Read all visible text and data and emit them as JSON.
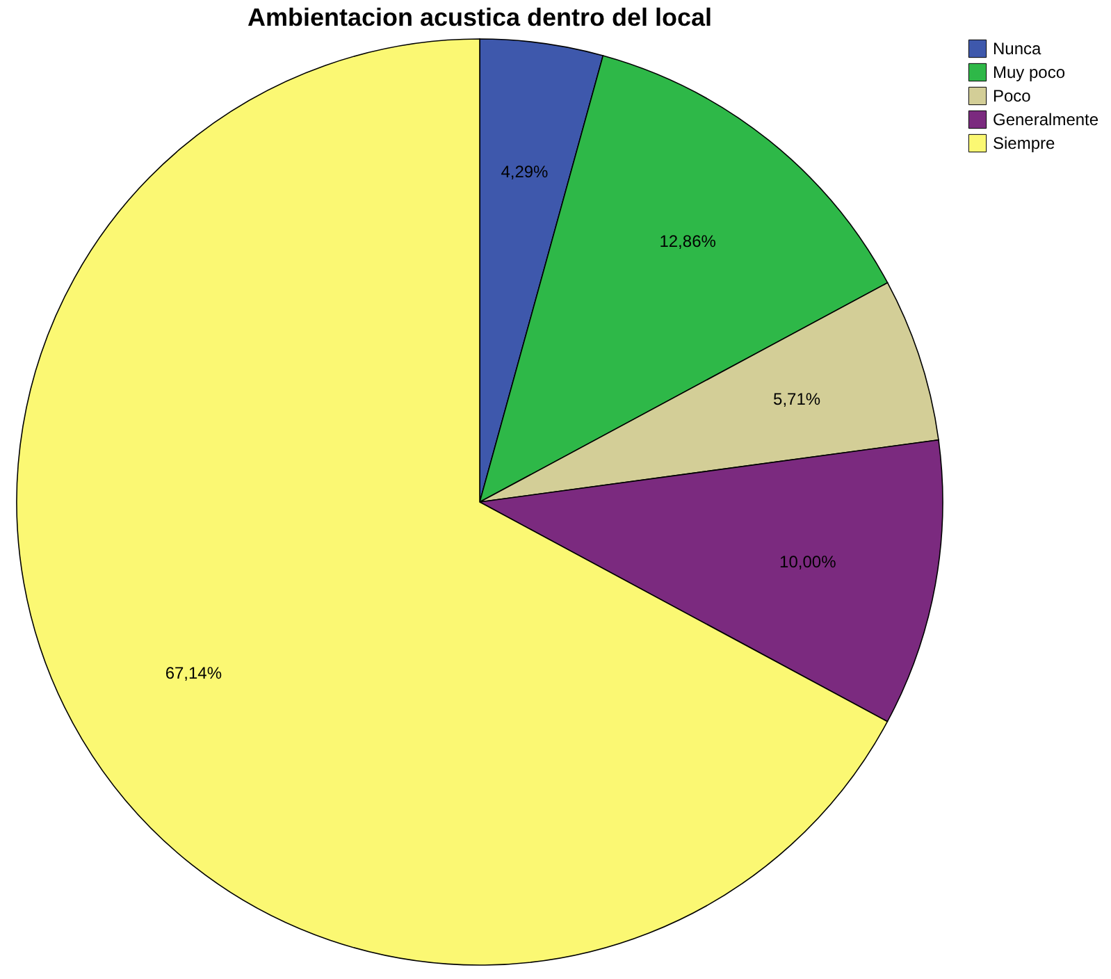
{
  "chart_data": {
    "type": "pie",
    "title": "Ambientacion acustica dentro del local",
    "categories": [
      "Nunca",
      "Muy poco",
      "Poco",
      "Generalmente",
      "Siempre"
    ],
    "values": [
      4.29,
      12.86,
      5.71,
      10.0,
      67.14
    ],
    "colors": [
      "#3e58ac",
      "#2eb848",
      "#d3ce97",
      "#7b2a7f",
      "#fbf873"
    ],
    "value_labels": [
      "4,29%",
      "12,86%",
      "5,71%",
      "10,00%",
      "67,14%"
    ],
    "legend": "top right"
  }
}
